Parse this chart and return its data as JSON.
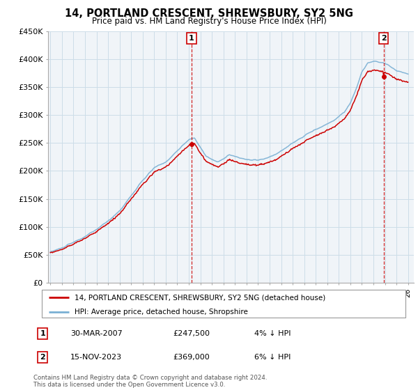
{
  "title": "14, PORTLAND CRESCENT, SHREWSBURY, SY2 5NG",
  "subtitle": "Price paid vs. HM Land Registry's House Price Index (HPI)",
  "ylabel_ticks": [
    "£0",
    "£50K",
    "£100K",
    "£150K",
    "£200K",
    "£250K",
    "£300K",
    "£350K",
    "£400K",
    "£450K"
  ],
  "ylim": [
    0,
    450000
  ],
  "xlim_start": 1994.8,
  "xlim_end": 2026.5,
  "xticks": [
    1995,
    1996,
    1997,
    1998,
    1999,
    2000,
    2001,
    2002,
    2003,
    2004,
    2005,
    2006,
    2007,
    2008,
    2009,
    2010,
    2011,
    2012,
    2013,
    2014,
    2015,
    2016,
    2017,
    2018,
    2019,
    2020,
    2021,
    2022,
    2023,
    2024,
    2025,
    2026
  ],
  "hpi_color": "#7ab0d4",
  "price_color": "#cc0000",
  "grid_color": "#ccdde8",
  "background_color": "#f0f4f8",
  "sale1_year": 2007.24,
  "sale1_price": 247500,
  "sale1_label": "1",
  "sale2_year": 2023.88,
  "sale2_price": 369000,
  "sale2_label": "2",
  "legend_label1": "14, PORTLAND CRESCENT, SHREWSBURY, SY2 5NG (detached house)",
  "legend_label2": "HPI: Average price, detached house, Shropshire",
  "table_row1": [
    "1",
    "30-MAR-2007",
    "£247,500",
    "4% ↓ HPI"
  ],
  "table_row2": [
    "2",
    "15-NOV-2023",
    "£369,000",
    "6% ↓ HPI"
  ],
  "footnote": "Contains HM Land Registry data © Crown copyright and database right 2024.\nThis data is licensed under the Open Government Licence v3.0."
}
